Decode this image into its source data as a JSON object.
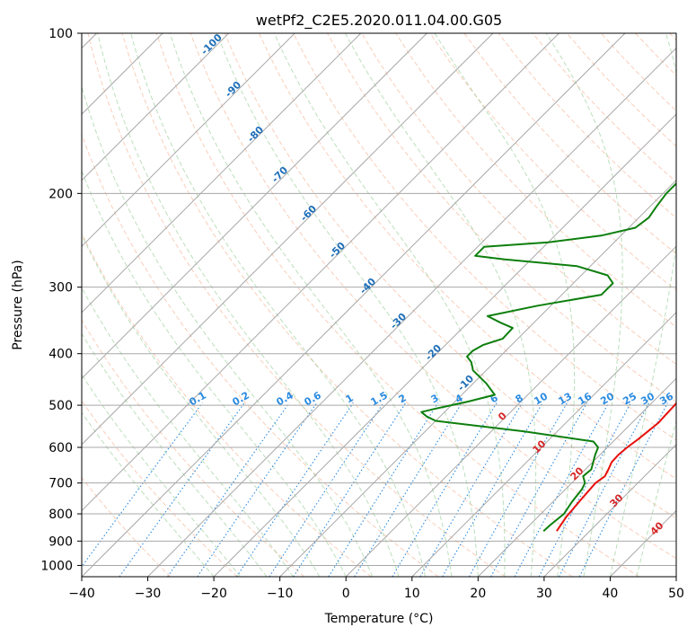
{
  "chart_data": {
    "type": "line",
    "subtype": "skew-t log-p diagram",
    "title": "wetPf2_C2E5.2020.011.04.00.G05",
    "xlabel": "Temperature (°C)",
    "ylabel": "Pressure (hPa)",
    "xlim": [
      -40,
      50
    ],
    "ylim": [
      1050,
      100
    ],
    "yscale": "log",
    "grid": true,
    "xticks": [
      -40,
      -30,
      -20,
      -10,
      0,
      10,
      20,
      30,
      40,
      50
    ],
    "xtick_labels": [
      "−40",
      "−30",
      "−20",
      "−10",
      "0",
      "10",
      "20",
      "30",
      "40",
      "50"
    ],
    "yticks": [
      100,
      200,
      300,
      400,
      500,
      600,
      700,
      800,
      900,
      1000
    ],
    "ytick_labels": [
      "100",
      "200",
      "300",
      "400",
      "500",
      "600",
      "700",
      "800",
      "900",
      "1000"
    ],
    "colors": {
      "temperature": "#e8100c",
      "dewpoint": "#0d7f0d",
      "isotherm": "#a8a8a8",
      "dry_adiabat": "#f4a582",
      "moist_adiabat": "#8fc98f",
      "mixing_ratio": "#2b8be0",
      "isotherm_label": "#1f6fb8",
      "mixing_label": "#2b8be0",
      "moist_label": "#d62728"
    },
    "series": [
      {
        "key": "temperature",
        "values": [
          [
            25.0,
            862
          ],
          [
            24.3,
            810
          ],
          [
            23.9,
            750
          ],
          [
            23.6,
            700
          ],
          [
            24.0,
            680
          ],
          [
            23.5,
            660
          ],
          [
            22.9,
            640
          ],
          [
            22.8,
            620
          ],
          [
            23.0,
            600
          ],
          [
            23.4,
            580
          ],
          [
            23.7,
            560
          ],
          [
            24.0,
            540
          ],
          [
            23.9,
            520
          ],
          [
            23.8,
            500
          ],
          [
            23.5,
            480
          ],
          [
            22.6,
            460
          ],
          [
            21.5,
            440
          ],
          [
            20.5,
            427
          ],
          [
            18.5,
            410
          ],
          [
            16.5,
            390
          ],
          [
            14.4,
            365
          ],
          [
            12.7,
            340
          ],
          [
            11.3,
            315
          ],
          [
            10.0,
            295
          ],
          [
            8.9,
            280
          ],
          [
            8.8,
            270
          ],
          [
            8.9,
            255
          ],
          [
            8.7,
            245
          ],
          [
            7.3,
            232
          ],
          [
            5.5,
            218
          ],
          [
            4.4,
            200
          ],
          [
            3.8,
            185
          ],
          [
            3.7,
            175
          ],
          [
            3.3,
            165
          ],
          [
            2.5,
            155
          ],
          [
            1.9,
            145
          ],
          [
            1.1,
            136
          ],
          [
            0.2,
            127
          ],
          [
            -0.8,
            117
          ],
          [
            -1.0,
            108
          ],
          [
            0.3,
            103
          ],
          [
            1.7,
            100
          ]
        ]
      },
      {
        "key": "dewpoint",
        "values": [
          [
            23.0,
            862
          ],
          [
            23.1,
            840
          ],
          [
            23.5,
            800
          ],
          [
            22.9,
            760
          ],
          [
            22.5,
            720
          ],
          [
            22.0,
            700
          ],
          [
            20.7,
            680
          ],
          [
            20.9,
            660
          ],
          [
            20.1,
            640
          ],
          [
            19.3,
            620
          ],
          [
            18.6,
            600
          ],
          [
            17.0,
            585
          ],
          [
            5.0,
            560
          ],
          [
            -10.0,
            535
          ],
          [
            -12.0,
            525
          ],
          [
            -13.5,
            515
          ],
          [
            -12.0,
            508
          ],
          [
            -10.0,
            500
          ],
          [
            -8.0,
            492
          ],
          [
            -5.0,
            478
          ],
          [
            -8.0,
            455
          ],
          [
            -12.0,
            430
          ],
          [
            -13.5,
            415
          ],
          [
            -15.0,
            405
          ],
          [
            -15.0,
            395
          ],
          [
            -14.3,
            385
          ],
          [
            -12.3,
            375
          ],
          [
            -12.4,
            358
          ],
          [
            -15.0,
            350
          ],
          [
            -18.0,
            340
          ],
          [
            -12.0,
            325
          ],
          [
            -4.0,
            310
          ],
          [
            -4.0,
            295
          ],
          [
            -6.0,
            285
          ],
          [
            -12.0,
            274
          ],
          [
            -24.0,
            266
          ],
          [
            -29.0,
            262
          ],
          [
            -29.0,
            252
          ],
          [
            -20.0,
            247
          ],
          [
            -13.0,
            240
          ],
          [
            -9.0,
            232
          ],
          [
            -8.5,
            222
          ],
          [
            -9.0,
            212
          ],
          [
            -9.5,
            200
          ],
          [
            -9.5,
            190
          ],
          [
            -8.5,
            180
          ],
          [
            -6.5,
            170
          ],
          [
            -5.3,
            160
          ],
          [
            -5.0,
            150
          ],
          [
            -4.3,
            140
          ],
          [
            -3.5,
            130
          ],
          [
            -2.3,
            120
          ],
          [
            -1.7,
            112
          ],
          [
            -1.2,
            104
          ],
          [
            -0.8,
            100
          ]
        ]
      }
    ],
    "isotherm_labels": [
      "-100",
      "-90",
      "-80",
      "-70",
      "-60",
      "-50",
      "-40",
      "-30",
      "-20",
      "-10"
    ],
    "mixing_ratio_labels": [
      "0.1",
      "0.2",
      "0.4",
      "0.6",
      "1",
      "1.5",
      "2",
      "3",
      "4",
      "6",
      "8",
      "10",
      "13",
      "16",
      "20",
      "25",
      "30",
      "36"
    ],
    "moist_adiabat_labels": [
      "0",
      "10",
      "20",
      "30",
      "40"
    ]
  }
}
